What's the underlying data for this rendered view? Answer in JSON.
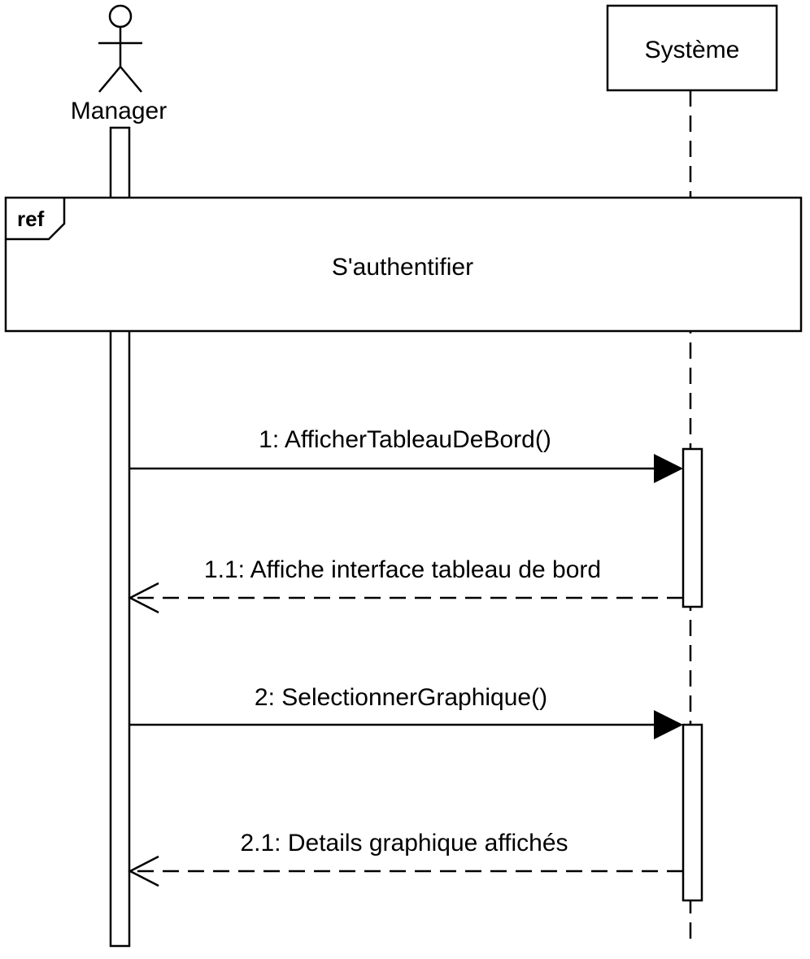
{
  "actor": {
    "name": "Manager",
    "icon": "stick-figure-actor-icon"
  },
  "system": {
    "name": "Système"
  },
  "ref_frame": {
    "tag": "ref",
    "label": "S'authentifier"
  },
  "messages": [
    {
      "label": "1: AfficherTableauDeBord()",
      "kind": "synchronous-call"
    },
    {
      "label": "1.1: Affiche interface tableau de bord",
      "kind": "return"
    },
    {
      "label": "2: SelectionnerGraphique()",
      "kind": "synchronous-call"
    },
    {
      "label": "2.1: Details graphique affichés",
      "kind": "return"
    }
  ]
}
